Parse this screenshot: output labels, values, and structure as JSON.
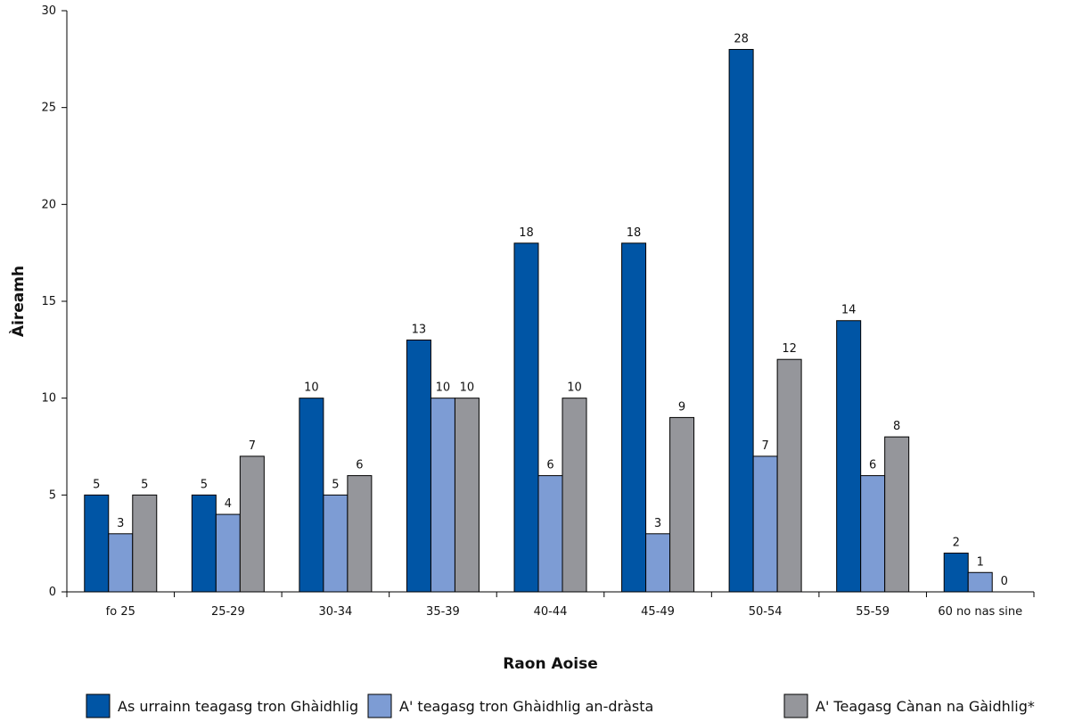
{
  "chart_data": {
    "type": "bar",
    "xlabel": "Raon Aoise",
    "ylabel": "Àireamh",
    "ylim": [
      0,
      30
    ],
    "yticks": [
      0,
      5,
      10,
      15,
      20,
      25,
      30
    ],
    "grid": false,
    "legend_position": "bottom",
    "categories": [
      "fo 25",
      "25-29",
      "30-34",
      "35-39",
      "40-44",
      "45-49",
      "50-54",
      "55-59",
      "60 no nas sine"
    ],
    "series": [
      {
        "name": "As urrainn teagasg tron Ghàidhlig",
        "color": "#0055a5",
        "values": [
          5,
          5,
          10,
          13,
          18,
          18,
          28,
          14,
          2
        ],
        "value_labels": [
          "5",
          "5",
          "10",
          "13",
          "18",
          "18",
          "28",
          "14",
          "2"
        ]
      },
      {
        "name": "A' teagasg tron Ghàidhlig an-dràsta",
        "color": "#7d9cd4",
        "values": [
          3,
          4,
          5,
          10,
          6,
          3,
          7,
          6,
          1
        ],
        "value_labels": [
          "3",
          "4",
          "5",
          "10",
          "6",
          "3",
          "7",
          "6",
          "1"
        ]
      },
      {
        "name": "A' Teagasg Cànan na Gàidhlig*",
        "color": "#95969b",
        "values": [
          5,
          7,
          6,
          10,
          10,
          9,
          12,
          8,
          0
        ],
        "value_labels": [
          "5",
          "7",
          "6",
          "10",
          "10",
          "9",
          "12",
          "8",
          "0"
        ]
      }
    ]
  }
}
